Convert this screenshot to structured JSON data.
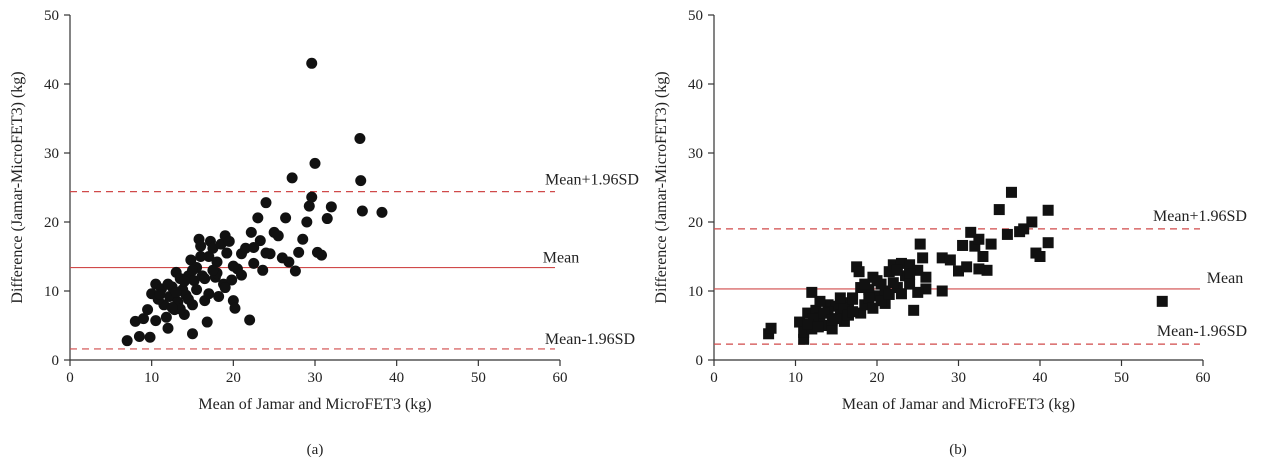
{
  "chart_data": [
    {
      "type": "scatter",
      "panel_label": "(a)",
      "xlabel": "Mean of Jamar and MicroFET3 (kg)",
      "ylabel": "Difference (Jamar-MicroFET3) (kg)",
      "xlim": [
        0,
        60
      ],
      "ylim": [
        0,
        50
      ],
      "xticks": [
        "0",
        "10",
        "20",
        "30",
        "40",
        "50",
        "60"
      ],
      "yticks": [
        "0",
        "10",
        "20",
        "30",
        "40",
        "50"
      ],
      "marker": "circle",
      "marker_color": "#111111",
      "reference_lines": [
        {
          "label": "Mean+1.96SD",
          "y": 24.4,
          "style": "dashed",
          "color": "#d04a4a"
        },
        {
          "label": "Mean",
          "y": 13.4,
          "style": "solid",
          "color": "#d04a4a"
        },
        {
          "label": "Mean-1.96SD",
          "y": 1.6,
          "style": "dashed",
          "color": "#d04a4a"
        }
      ],
      "points": [
        [
          7.0,
          2.8
        ],
        [
          8.5,
          3.4
        ],
        [
          9.8,
          3.3
        ],
        [
          8.0,
          5.6
        ],
        [
          9.0,
          6.0
        ],
        [
          10.5,
          5.7
        ],
        [
          9.5,
          7.3
        ],
        [
          10.0,
          9.6
        ],
        [
          10.5,
          11.0
        ],
        [
          11.2,
          10.3
        ],
        [
          11.5,
          8.0
        ],
        [
          11.8,
          6.2
        ],
        [
          12.0,
          4.6
        ],
        [
          12.2,
          9.2
        ],
        [
          12.5,
          10.6
        ],
        [
          12.8,
          7.3
        ],
        [
          13.0,
          12.7
        ],
        [
          13.2,
          8.4
        ],
        [
          13.5,
          11.8
        ],
        [
          13.8,
          10.2
        ],
        [
          14.0,
          6.6
        ],
        [
          14.2,
          9.4
        ],
        [
          14.5,
          12.2
        ],
        [
          14.8,
          14.5
        ],
        [
          15.0,
          8.0
        ],
        [
          15.0,
          3.8
        ],
        [
          15.2,
          11.5
        ],
        [
          15.5,
          13.4
        ],
        [
          15.8,
          17.5
        ],
        [
          16.0,
          16.5
        ],
        [
          16.2,
          12.2
        ],
        [
          16.5,
          8.6
        ],
        [
          16.8,
          5.5
        ],
        [
          17.0,
          15.0
        ],
        [
          17.2,
          17.2
        ],
        [
          17.5,
          16.2
        ],
        [
          17.8,
          12.0
        ],
        [
          18.0,
          14.2
        ],
        [
          18.2,
          9.2
        ],
        [
          18.5,
          16.8
        ],
        [
          18.8,
          11.0
        ],
        [
          19.0,
          18.0
        ],
        [
          19.2,
          15.5
        ],
        [
          19.5,
          17.2
        ],
        [
          19.8,
          11.6
        ],
        [
          20.0,
          8.6
        ],
        [
          20.2,
          7.5
        ],
        [
          20.5,
          13.2
        ],
        [
          21.0,
          15.4
        ],
        [
          21.5,
          16.2
        ],
        [
          22.0,
          5.8
        ],
        [
          22.2,
          18.5
        ],
        [
          22.5,
          14.0
        ],
        [
          23.0,
          20.6
        ],
        [
          23.3,
          17.3
        ],
        [
          23.6,
          13.0
        ],
        [
          24.0,
          22.8
        ],
        [
          24.5,
          15.4
        ],
        [
          25.0,
          18.5
        ],
        [
          25.5,
          18.0
        ],
        [
          26.0,
          14.8
        ],
        [
          26.4,
          20.6
        ],
        [
          26.8,
          14.2
        ],
        [
          27.2,
          26.4
        ],
        [
          27.6,
          12.9
        ],
        [
          28.0,
          15.6
        ],
        [
          28.5,
          17.5
        ],
        [
          29.0,
          20.0
        ],
        [
          29.3,
          22.3
        ],
        [
          29.6,
          23.6
        ],
        [
          29.6,
          43.0
        ],
        [
          30.0,
          28.5
        ],
        [
          30.3,
          15.6
        ],
        [
          30.8,
          15.2
        ],
        [
          31.5,
          20.5
        ],
        [
          32.0,
          22.2
        ],
        [
          35.5,
          32.1
        ],
        [
          35.6,
          26.0
        ],
        [
          35.8,
          21.6
        ],
        [
          38.2,
          21.4
        ],
        [
          10.8,
          8.8
        ],
        [
          11.0,
          9.5
        ],
        [
          12.0,
          11.0
        ],
        [
          13.0,
          9.8
        ],
        [
          14.0,
          11.4
        ],
        [
          15.5,
          10.2
        ],
        [
          16.0,
          15.0
        ],
        [
          17.0,
          9.6
        ],
        [
          18.0,
          12.6
        ],
        [
          19.0,
          10.5
        ],
        [
          21.0,
          12.3
        ],
        [
          22.5,
          16.3
        ],
        [
          24.0,
          15.5
        ],
        [
          13.5,
          7.4
        ],
        [
          15.0,
          13.0
        ],
        [
          16.5,
          11.8
        ],
        [
          12.5,
          7.6
        ],
        [
          14.5,
          8.8
        ],
        [
          17.5,
          13.0
        ],
        [
          20.0,
          13.6
        ]
      ]
    },
    {
      "type": "scatter",
      "panel_label": "(b)",
      "xlabel": "Mean of Jamar and MicroFET3 (kg)",
      "ylabel": "Difference (Jamar-MicroFET3) (kg)",
      "xlim": [
        0,
        60
      ],
      "ylim": [
        0,
        50
      ],
      "xticks": [
        "0",
        "10",
        "20",
        "30",
        "40",
        "50",
        "60"
      ],
      "yticks": [
        "0",
        "10",
        "20",
        "30",
        "40",
        "50"
      ],
      "marker": "square",
      "marker_color": "#111111",
      "reference_lines": [
        {
          "label": "Mean+1.96SD",
          "y": 19.0,
          "style": "dashed",
          "color": "#d04a4a"
        },
        {
          "label": "Mean",
          "y": 10.3,
          "style": "solid",
          "color": "#d04a4a"
        },
        {
          "label": "Mean-1.96SD",
          "y": 2.3,
          "style": "dashed",
          "color": "#d04a4a"
        }
      ],
      "points": [
        [
          6.7,
          3.8
        ],
        [
          7.0,
          4.6
        ],
        [
          10.5,
          5.5
        ],
        [
          11.0,
          3.0
        ],
        [
          11.0,
          4.0
        ],
        [
          11.5,
          6.8
        ],
        [
          12.0,
          4.5
        ],
        [
          12.0,
          9.8
        ],
        [
          12.5,
          7.2
        ],
        [
          13.0,
          6.1
        ],
        [
          13.5,
          5.0
        ],
        [
          14.0,
          8.0
        ],
        [
          14.5,
          4.5
        ],
        [
          15.0,
          7.8
        ],
        [
          15.5,
          6.5
        ],
        [
          16.0,
          5.6
        ],
        [
          16.5,
          8.3
        ],
        [
          17.0,
          9.0
        ],
        [
          17.5,
          13.5
        ],
        [
          17.8,
          12.8
        ],
        [
          18.0,
          6.8
        ],
        [
          18.5,
          8.0
        ],
        [
          19.0,
          10.2
        ],
        [
          19.5,
          12.0
        ],
        [
          20.0,
          9.3
        ],
        [
          20.5,
          11.0
        ],
        [
          21.0,
          8.2
        ],
        [
          21.5,
          12.8
        ],
        [
          22.0,
          13.8
        ],
        [
          22.5,
          10.5
        ],
        [
          23.0,
          14.0
        ],
        [
          23.5,
          12.2
        ],
        [
          24.0,
          13.8
        ],
        [
          24.5,
          7.2
        ],
        [
          25.0,
          13.0
        ],
        [
          25.3,
          16.8
        ],
        [
          25.6,
          14.8
        ],
        [
          26.0,
          10.3
        ],
        [
          28.0,
          14.8
        ],
        [
          28.0,
          10.0
        ],
        [
          29.0,
          14.5
        ],
        [
          30.0,
          12.9
        ],
        [
          30.5,
          16.6
        ],
        [
          31.0,
          13.5
        ],
        [
          31.5,
          18.5
        ],
        [
          32.0,
          16.5
        ],
        [
          32.5,
          17.5
        ],
        [
          33.0,
          15.0
        ],
        [
          33.5,
          13.0
        ],
        [
          34.0,
          16.8
        ],
        [
          35.0,
          21.8
        ],
        [
          36.0,
          18.2
        ],
        [
          36.5,
          24.3
        ],
        [
          37.5,
          18.6
        ],
        [
          38.0,
          19.0
        ],
        [
          39.0,
          20.0
        ],
        [
          39.5,
          15.5
        ],
        [
          40.0,
          15.0
        ],
        [
          41.0,
          21.7
        ],
        [
          41.0,
          17.0
        ],
        [
          55.0,
          8.5
        ],
        [
          12.2,
          6.0
        ],
        [
          13.0,
          8.5
        ],
        [
          14.0,
          7.0
        ],
        [
          15.0,
          6.0
        ],
        [
          16.0,
          7.5
        ],
        [
          17.0,
          8.8
        ],
        [
          18.0,
          10.5
        ],
        [
          19.0,
          9.0
        ],
        [
          20.0,
          11.5
        ],
        [
          21.0,
          10.0
        ],
        [
          22.0,
          11.2
        ],
        [
          23.0,
          9.6
        ],
        [
          24.0,
          12.4
        ],
        [
          25.0,
          9.8
        ],
        [
          15.5,
          9.0
        ],
        [
          16.5,
          6.5
        ],
        [
          18.5,
          11.0
        ],
        [
          20.5,
          8.6
        ],
        [
          22.5,
          13.0
        ],
        [
          13.5,
          6.8
        ],
        [
          14.5,
          5.8
        ],
        [
          17.0,
          7.0
        ],
        [
          19.5,
          7.5
        ],
        [
          21.5,
          9.5
        ],
        [
          11.5,
          5.2
        ],
        [
          12.8,
          4.8
        ],
        [
          24.0,
          11.0
        ],
        [
          26.0,
          12.0
        ],
        [
          32.5,
          13.2
        ]
      ]
    }
  ]
}
